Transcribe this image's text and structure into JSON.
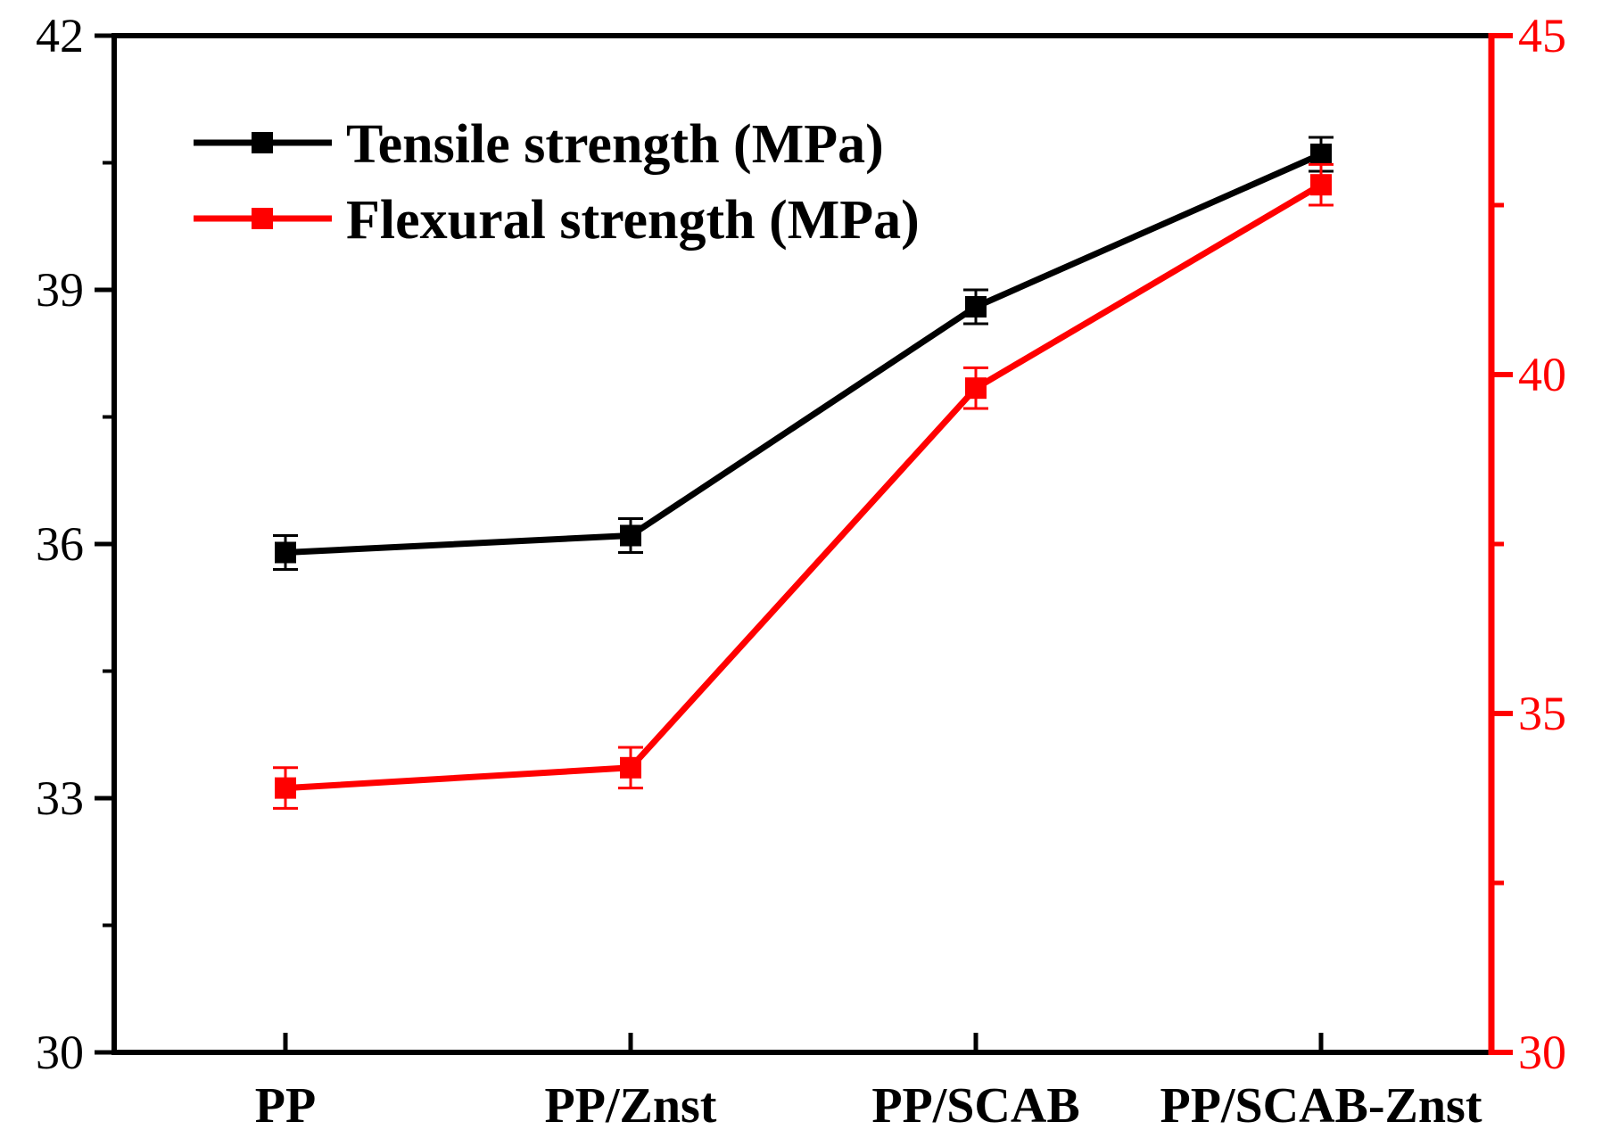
{
  "chart_data": {
    "type": "line",
    "categories": [
      "PP",
      "PP/Znst",
      "PP/SCAB",
      "PP/SCAB-Znst"
    ],
    "y_left": {
      "range": [
        30,
        42
      ],
      "major_ticks": [
        30,
        33,
        36,
        39,
        42
      ],
      "minor_step": 1.5,
      "color": "#000000"
    },
    "y_right": {
      "range": [
        30,
        45
      ],
      "major_ticks": [
        30,
        35,
        40,
        45
      ],
      "minor_step": 2.5,
      "color": "#ff0000"
    },
    "legend_position": "top-left",
    "grid": false,
    "series": [
      {
        "name": "Tensile strength (MPa)",
        "axis": "left",
        "color": "#000000",
        "values": [
          35.9,
          36.1,
          38.8,
          40.6
        ],
        "errors": [
          0.2,
          0.2,
          0.2,
          0.2
        ]
      },
      {
        "name": "Flexural strength (MPa)",
        "axis": "right",
        "color": "#ff0000",
        "values": [
          33.9,
          34.2,
          39.8,
          42.8
        ],
        "errors": [
          0.3,
          0.3,
          0.3,
          0.3
        ]
      }
    ]
  }
}
